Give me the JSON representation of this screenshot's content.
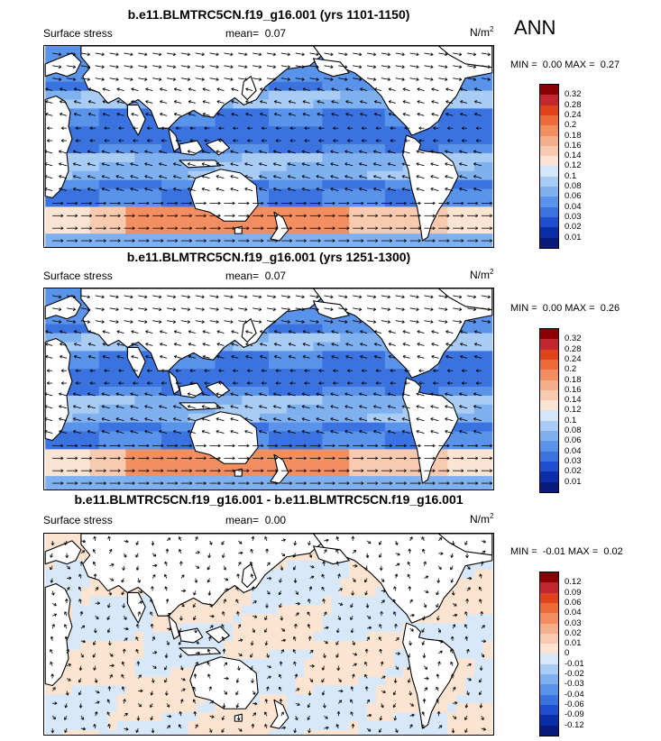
{
  "season": "ANN",
  "panels": [
    {
      "title": "b.e11.BLMTRC5CN.f19_g16.001 (yrs 1101-1150)",
      "field": "Surface stress",
      "mean_label": "mean=",
      "mean_value": "0.07",
      "units_base": "N/m",
      "units_sup": "2",
      "min_label": "MIN =",
      "min_value": "0.00",
      "max_label": "MAX =",
      "max_value": "0.27",
      "colorbar_levels": [
        "0.32",
        "0.28",
        "0.24",
        "0.2",
        "0.18",
        "0.16",
        "0.14",
        "0.12",
        "0.1",
        "0.08",
        "0.06",
        "0.04",
        "0.03",
        "0.02",
        "0.01"
      ],
      "colorbar_colors": [
        "#8b0000",
        "#c1272d",
        "#e0431c",
        "#ef6a3a",
        "#f28e60",
        "#f5ae8a",
        "#f8cbb0",
        "#fbe4d4",
        "#d4e6fa",
        "#a9ccf5",
        "#7fb0ef",
        "#5a93ea",
        "#3a73e0",
        "#1f4fd0",
        "#0a2ea8",
        "#0a1a7a"
      ]
    },
    {
      "title": "b.e11.BLMTRC5CN.f19_g16.001 (yrs 1251-1300)",
      "field": "Surface stress",
      "mean_label": "mean=",
      "mean_value": "0.07",
      "units_base": "N/m",
      "units_sup": "2",
      "min_label": "MIN =",
      "min_value": "0.00",
      "max_label": "MAX =",
      "max_value": "0.26",
      "colorbar_levels": [
        "0.32",
        "0.28",
        "0.24",
        "0.2",
        "0.18",
        "0.16",
        "0.14",
        "0.12",
        "0.1",
        "0.08",
        "0.06",
        "0.04",
        "0.03",
        "0.02",
        "0.01"
      ],
      "colorbar_colors": [
        "#8b0000",
        "#c1272d",
        "#e0431c",
        "#ef6a3a",
        "#f28e60",
        "#f5ae8a",
        "#f8cbb0",
        "#fbe4d4",
        "#d4e6fa",
        "#a9ccf5",
        "#7fb0ef",
        "#5a93ea",
        "#3a73e0",
        "#1f4fd0",
        "#0a2ea8",
        "#0a1a7a"
      ]
    },
    {
      "title": "b.e11.BLMTRC5CN.f19_g16.001 - b.e11.BLMTRC5CN.f19_g16.001",
      "field": "Surface stress",
      "mean_label": "mean=",
      "mean_value": "0.00",
      "units_base": "N/m",
      "units_sup": "2",
      "min_label": "MIN =",
      "min_value": "-0.01",
      "max_label": "MAX =",
      "max_value": "0.02",
      "colorbar_levels": [
        "0.12",
        "0.09",
        "0.06",
        "0.04",
        "0.03",
        "0.02",
        "0.01",
        "0",
        "-0.01",
        "-0.02",
        "-0.03",
        "-0.04",
        "-0.06",
        "-0.09",
        "-0.12"
      ],
      "colorbar_colors": [
        "#8b0000",
        "#c1272d",
        "#e0431c",
        "#ef6a3a",
        "#f28e60",
        "#f5ae8a",
        "#f8cbb0",
        "#fde4d0",
        "#d6e8fa",
        "#a9ccf5",
        "#7fb0ef",
        "#5a93ea",
        "#3a73e0",
        "#1f4fd0",
        "#0a2ea8",
        "#0a1a7a"
      ]
    }
  ]
}
